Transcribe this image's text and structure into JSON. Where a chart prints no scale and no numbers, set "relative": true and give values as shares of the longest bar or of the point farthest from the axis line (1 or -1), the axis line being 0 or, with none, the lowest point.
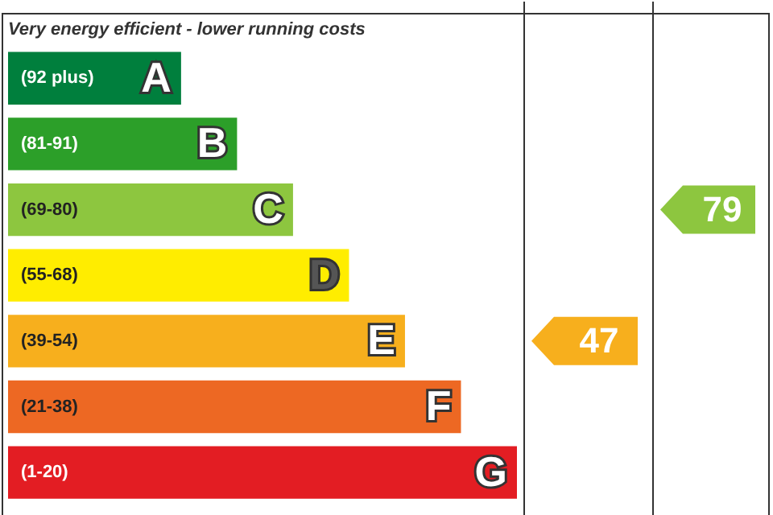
{
  "chart_data": {
    "type": "bar",
    "orientation": "horizontal",
    "relative": true,
    "title": "Very energy efficient - lower running costs",
    "categories": [
      "A",
      "B",
      "C",
      "D",
      "E",
      "F",
      "G"
    ],
    "values": [
      0.34,
      0.45,
      0.56,
      0.67,
      0.78,
      0.89,
      1
    ],
    "colors": [
      "#007f3d",
      "#2c9f29",
      "#8dc63f",
      "#ffed00",
      "#f7af1d",
      "#ed6823",
      "#e31d23"
    ],
    "annotations": [
      "(92 plus)",
      "(81-91)",
      "(69-80)",
      "(55-68)",
      "(39-54)",
      "(21-38)",
      "(1-20)",
      "47",
      "79"
    ],
    "legend": false
  }
}
